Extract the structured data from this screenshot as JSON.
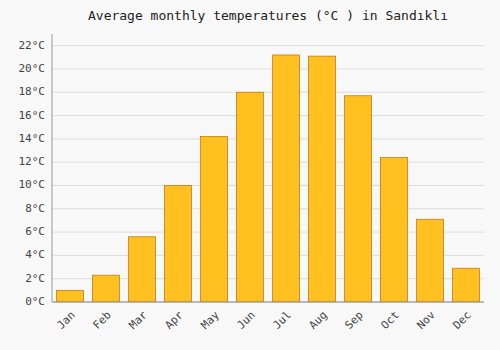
{
  "chart_data": {
    "type": "bar",
    "title": "Average monthly temperatures (°C ) in Sandıklı",
    "categories": [
      "Jan",
      "Feb",
      "Mar",
      "Apr",
      "May",
      "Jun",
      "Jul",
      "Aug",
      "Sep",
      "Oct",
      "Nov",
      "Dec"
    ],
    "values": [
      1.0,
      2.3,
      5.6,
      10.0,
      14.2,
      18.0,
      21.2,
      21.1,
      17.7,
      12.4,
      7.1,
      2.9
    ],
    "color": "#FFC020",
    "ylim": [
      0,
      23
    ],
    "yticks": [
      {
        "value": 0,
        "label": "0°C"
      },
      {
        "value": 2,
        "label": "2°C"
      },
      {
        "value": 4,
        "label": "4°C"
      },
      {
        "value": 6,
        "label": "6°C"
      },
      {
        "value": 8,
        "label": "8°C"
      },
      {
        "value": 10,
        "label": "10°C"
      },
      {
        "value": 12,
        "label": "12°C"
      },
      {
        "value": 14,
        "label": "14°C"
      },
      {
        "value": 16,
        "label": "16°C"
      },
      {
        "value": 18,
        "label": "18°C"
      },
      {
        "value": 20,
        "label": "20°C"
      },
      {
        "value": 22,
        "label": "22°C"
      }
    ],
    "grid": true
  }
}
